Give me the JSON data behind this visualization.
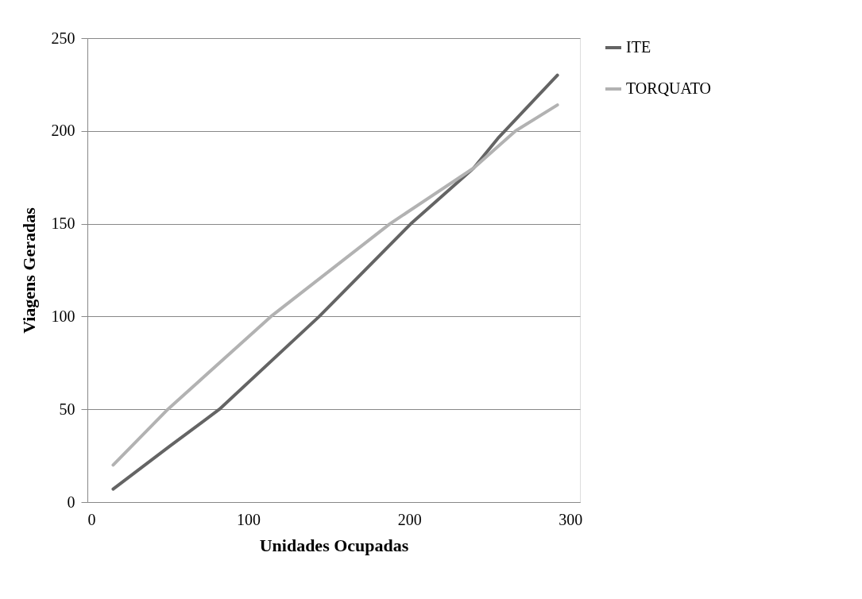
{
  "chart_data": {
    "type": "line",
    "xlabel": "Unidades Ocupadas",
    "ylabel": "Viagens Geradas",
    "xlim": [
      0,
      306
    ],
    "xticks": [
      0,
      100,
      200,
      300
    ],
    "ylim": [
      0,
      250
    ],
    "yticks": [
      0,
      50,
      100,
      150,
      200,
      250
    ],
    "grid": "y",
    "legend": "right",
    "marker": "none",
    "line_style": "solid",
    "series": [
      {
        "name": "ITE",
        "color": "#646464",
        "x": [
          16,
          51,
          82,
          144,
          201,
          240,
          255,
          292
        ],
        "values": [
          7,
          30,
          50,
          100,
          150,
          180,
          196,
          230
        ]
      },
      {
        "name": "TORQUATO",
        "color": "#b2b2b2",
        "x": [
          16,
          50,
          114,
          188,
          240,
          266,
          292
        ],
        "values": [
          20,
          50,
          100,
          150,
          180,
          200,
          214
        ]
      }
    ]
  }
}
